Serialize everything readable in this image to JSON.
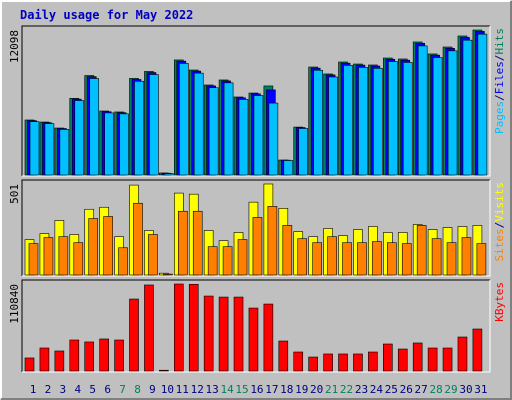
{
  "title": "Daily usage for May 2022",
  "chart_data": [
    {
      "type": "bar",
      "legend_separator": "/",
      "series": [
        {
          "name": "Hits",
          "color": "#00805c",
          "values": [
            4590,
            4420,
            3920,
            6400,
            8300,
            5340,
            5260,
            8060,
            8640,
            170,
            9600,
            8760,
            7510,
            7930,
            6510,
            6840,
            7430,
            1250,
            4000,
            9010,
            8430,
            9430,
            9260,
            9180,
            9760,
            9680,
            11100,
            10100,
            10680,
            11600,
            12098
          ]
        },
        {
          "name": "Files",
          "color": "#0000ff",
          "values": [
            4540,
            4370,
            3880,
            6330,
            8210,
            5280,
            5200,
            7970,
            8550,
            150,
            9500,
            8670,
            7430,
            7850,
            6440,
            6770,
            7100,
            1240,
            3960,
            8920,
            8350,
            9330,
            9170,
            9090,
            9660,
            9580,
            10990,
            10000,
            10570,
            11480,
            11980
          ]
        },
        {
          "name": "Pages",
          "color": "#00c0ff",
          "values": [
            4450,
            4290,
            3800,
            6210,
            8050,
            5180,
            5100,
            7820,
            8380,
            120,
            9310,
            8500,
            7280,
            7690,
            6310,
            6630,
            6000,
            1210,
            3880,
            8740,
            8180,
            9150,
            8980,
            8900,
            9470,
            9390,
            10770,
            9800,
            10360,
            11250,
            11750
          ]
        }
      ],
      "ylim": [
        0,
        12098
      ],
      "yticks": [
        12098
      ]
    },
    {
      "type": "bar",
      "legend_separator": "/",
      "series": [
        {
          "name": "Visits",
          "color": "#ffff00",
          "values": [
            195,
            228,
            300,
            223,
            362,
            373,
            211,
            495,
            245,
            10,
            451,
            445,
            245,
            189,
            234,
            401,
            501,
            367,
            239,
            211,
            256,
            217,
            250,
            267,
            234,
            234,
            278,
            250,
            261,
            267,
            273
          ]
        },
        {
          "name": "Sites",
          "color": "#ff8000",
          "values": [
            173,
            206,
            211,
            178,
            311,
            322,
            150,
            395,
            223,
            5,
            351,
            351,
            156,
            156,
            195,
            317,
            378,
            273,
            200,
            178,
            211,
            178,
            178,
            184,
            178,
            173,
            273,
            200,
            178,
            206,
            173
          ]
        }
      ],
      "ylim": [
        0,
        501
      ],
      "yticks": [
        501
      ]
    },
    {
      "type": "bar",
      "series": [
        {
          "name": "KBytes",
          "color": "#ff0000",
          "values": [
            16600,
            29300,
            25500,
            39500,
            37000,
            40800,
            39500,
            91700,
            109600,
            1000,
            110840,
            110500,
            95500,
            94200,
            94200,
            80200,
            85300,
            38200,
            24200,
            17800,
            21700,
            21700,
            21700,
            24200,
            34400,
            28000,
            35700,
            29300,
            29300,
            43300,
            53500
          ]
        }
      ],
      "ylim": [
        0,
        110840
      ],
      "yticks": [
        110840
      ],
      "categories": [
        "1",
        "2",
        "3",
        "4",
        "5",
        "6",
        "7",
        "8",
        "9",
        "10",
        "11",
        "12",
        "13",
        "14",
        "15",
        "16",
        "17",
        "18",
        "19",
        "20",
        "21",
        "22",
        "23",
        "24",
        "25",
        "26",
        "27",
        "28",
        "29",
        "30",
        "31"
      ],
      "label_color": "#000080",
      "highlight_color": "#00805c",
      "highlight": [
        "7",
        "8",
        "14",
        "15",
        "21",
        "22",
        "28",
        "29"
      ]
    }
  ]
}
